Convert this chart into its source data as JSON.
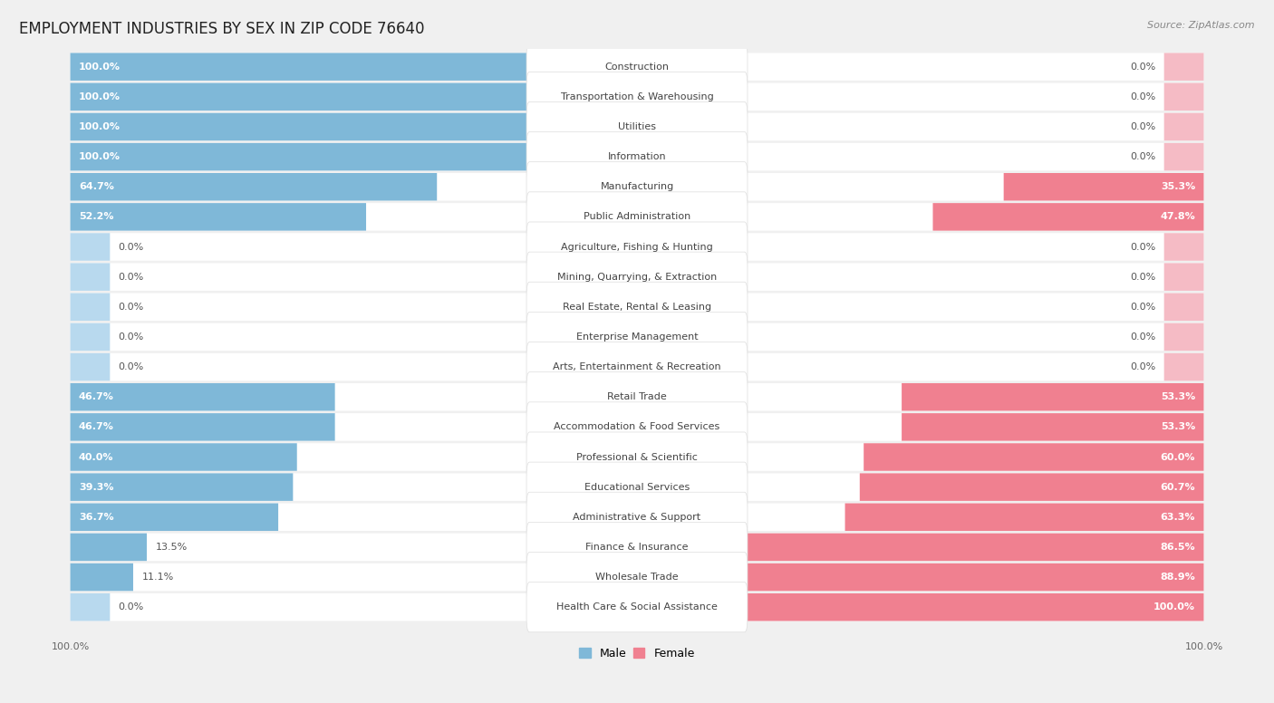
{
  "title": "EMPLOYMENT INDUSTRIES BY SEX IN ZIP CODE 76640",
  "source": "Source: ZipAtlas.com",
  "categories": [
    "Construction",
    "Transportation & Warehousing",
    "Utilities",
    "Information",
    "Manufacturing",
    "Public Administration",
    "Agriculture, Fishing & Hunting",
    "Mining, Quarrying, & Extraction",
    "Real Estate, Rental & Leasing",
    "Enterprise Management",
    "Arts, Entertainment & Recreation",
    "Retail Trade",
    "Accommodation & Food Services",
    "Professional & Scientific",
    "Educational Services",
    "Administrative & Support",
    "Finance & Insurance",
    "Wholesale Trade",
    "Health Care & Social Assistance"
  ],
  "male": [
    100.0,
    100.0,
    100.0,
    100.0,
    64.7,
    52.2,
    0.0,
    0.0,
    0.0,
    0.0,
    0.0,
    46.7,
    46.7,
    40.0,
    39.3,
    36.7,
    13.5,
    11.1,
    0.0
  ],
  "female": [
    0.0,
    0.0,
    0.0,
    0.0,
    35.3,
    47.8,
    0.0,
    0.0,
    0.0,
    0.0,
    0.0,
    53.3,
    53.3,
    60.0,
    60.7,
    63.3,
    86.5,
    88.9,
    100.0
  ],
  "male_color": "#7fb8d8",
  "female_color": "#f08090",
  "male_color_light": "#b8d9ee",
  "female_color_light": "#f5bbc5",
  "bg_color": "#f0f0f0",
  "row_bg_color": "#ffffff",
  "separator_color": "#e0e0e0",
  "label_bg_color": "#ffffff",
  "title_fontsize": 12,
  "label_fontsize": 8,
  "pct_fontsize": 8,
  "source_fontsize": 8
}
